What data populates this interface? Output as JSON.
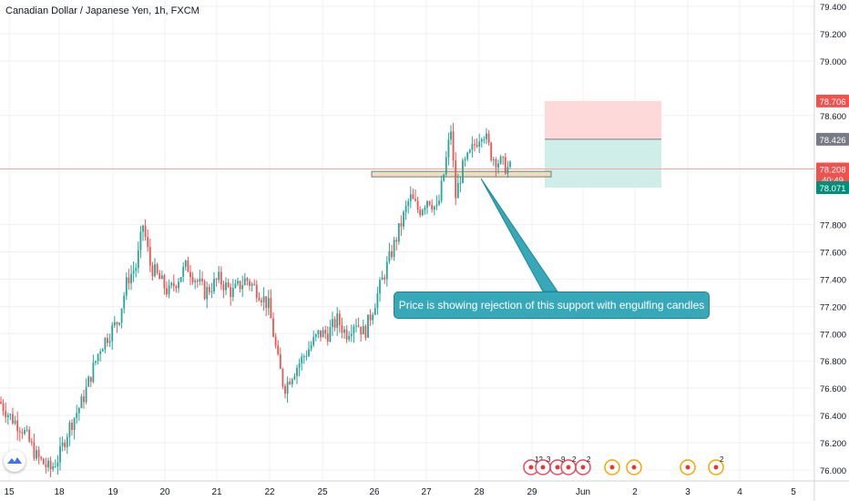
{
  "title": "Canadian Dollar / Japanese Yen, 1h, FXCM",
  "annotation": "Price is showing rejection of this support with engulfing candles",
  "colors": {
    "up": "#26a69a",
    "down": "#ef5350",
    "grid": "#eef0f3",
    "axis_text": "#131722",
    "price_line": "#f4a6a0",
    "support_zone": "#e8dcc0",
    "support_border": "#7a6c4a",
    "stop_zone": "#fdd9d9",
    "target_zone": "#cfeee9",
    "callout": "#36a8b8"
  },
  "chart_data": {
    "type": "candlestick",
    "title": "Canadian Dollar / Japanese Yen, 1h, FXCM",
    "yaxis": {
      "ylim": [
        75.95,
        79.45
      ],
      "ticks": [
        "79.400",
        "79.200",
        "79.000",
        "78.600",
        "77.800",
        "77.600",
        "77.400",
        "77.200",
        "77.000",
        "76.800",
        "76.600",
        "76.400",
        "76.200",
        "76.000"
      ]
    },
    "xaxis": {
      "ticks": [
        "15",
        "18",
        "19",
        "20",
        "21",
        "22",
        "25",
        "26",
        "27",
        "28",
        "29",
        "Jun",
        "2",
        "3",
        "4",
        "5"
      ]
    },
    "price_labels": [
      {
        "id": "stop",
        "text": "78.706",
        "value": 78.706,
        "color": "#ef5350"
      },
      {
        "id": "entry",
        "text": "78.426",
        "value": 78.426,
        "color": "#787b86"
      },
      {
        "id": "last",
        "text": "78.208",
        "value": 78.208,
        "color": "#ef5350"
      },
      {
        "id": "countdown",
        "text": "40:49",
        "value": 78.13,
        "color": "#ef5350"
      },
      {
        "id": "target",
        "text": "78.071",
        "value": 78.071,
        "color": "#008f7a"
      }
    ],
    "last_price": 78.208,
    "support_zone": {
      "from": 78.15,
      "to": 78.19
    },
    "position": {
      "type": "short",
      "entry": 78.426,
      "stop": 78.706,
      "target": 78.071
    },
    "events": [
      {
        "label": "12",
        "day": "29",
        "kind": "red"
      },
      {
        "label": "3",
        "day": "29",
        "kind": "red"
      },
      {
        "label": "9",
        "day": "29",
        "kind": "red"
      },
      {
        "label": "2",
        "day": "29",
        "kind": "red"
      },
      {
        "label": "2",
        "day": "Jun",
        "kind": "red"
      },
      {
        "label": "",
        "day": "2",
        "kind": "orange"
      },
      {
        "label": "",
        "day": "2",
        "kind": "orange"
      },
      {
        "label": "",
        "day": "3",
        "kind": "orange"
      },
      {
        "label": "2",
        "day": "3",
        "kind": "orange"
      }
    ],
    "series": [
      {
        "name": "CADJPY",
        "path": [
          [
            0,
            76.5
          ],
          [
            10,
            76.4
          ],
          [
            25,
            76.3
          ],
          [
            40,
            76.1
          ],
          [
            55,
            76.0
          ],
          [
            65,
            76.1
          ],
          [
            75,
            76.3
          ],
          [
            90,
            76.5
          ],
          [
            100,
            76.7
          ],
          [
            110,
            76.9
          ],
          [
            120,
            77.0
          ],
          [
            130,
            77.1
          ],
          [
            140,
            77.4
          ],
          [
            150,
            77.5
          ],
          [
            157,
            77.8
          ],
          [
            165,
            77.5
          ],
          [
            175,
            77.4
          ],
          [
            185,
            77.3
          ],
          [
            195,
            77.4
          ],
          [
            205,
            77.5
          ],
          [
            215,
            77.4
          ],
          [
            225,
            77.3
          ],
          [
            240,
            77.4
          ],
          [
            255,
            77.3
          ],
          [
            270,
            77.4
          ],
          [
            285,
            77.3
          ],
          [
            295,
            77.2
          ],
          [
            300,
            77.0
          ],
          [
            305,
            76.8
          ],
          [
            312,
            76.6
          ],
          [
            320,
            76.7
          ],
          [
            330,
            76.8
          ],
          [
            340,
            76.9
          ],
          [
            350,
            77.0
          ],
          [
            360,
            77.0
          ],
          [
            370,
            77.1
          ],
          [
            380,
            77.0
          ],
          [
            390,
            77.1
          ],
          [
            400,
            77.0
          ],
          [
            410,
            77.2
          ],
          [
            420,
            77.4
          ],
          [
            430,
            77.6
          ],
          [
            440,
            77.8
          ],
          [
            450,
            78.0
          ],
          [
            460,
            77.9
          ],
          [
            470,
            78.0
          ],
          [
            480,
            77.9
          ],
          [
            488,
            78.2
          ],
          [
            495,
            78.5
          ],
          [
            500,
            78.0
          ],
          [
            507,
            78.2
          ],
          [
            515,
            78.3
          ],
          [
            522,
            78.4
          ],
          [
            530,
            78.5
          ],
          [
            540,
            78.3
          ],
          [
            550,
            78.25
          ],
          [
            558,
            78.21
          ]
        ]
      }
    ]
  }
}
